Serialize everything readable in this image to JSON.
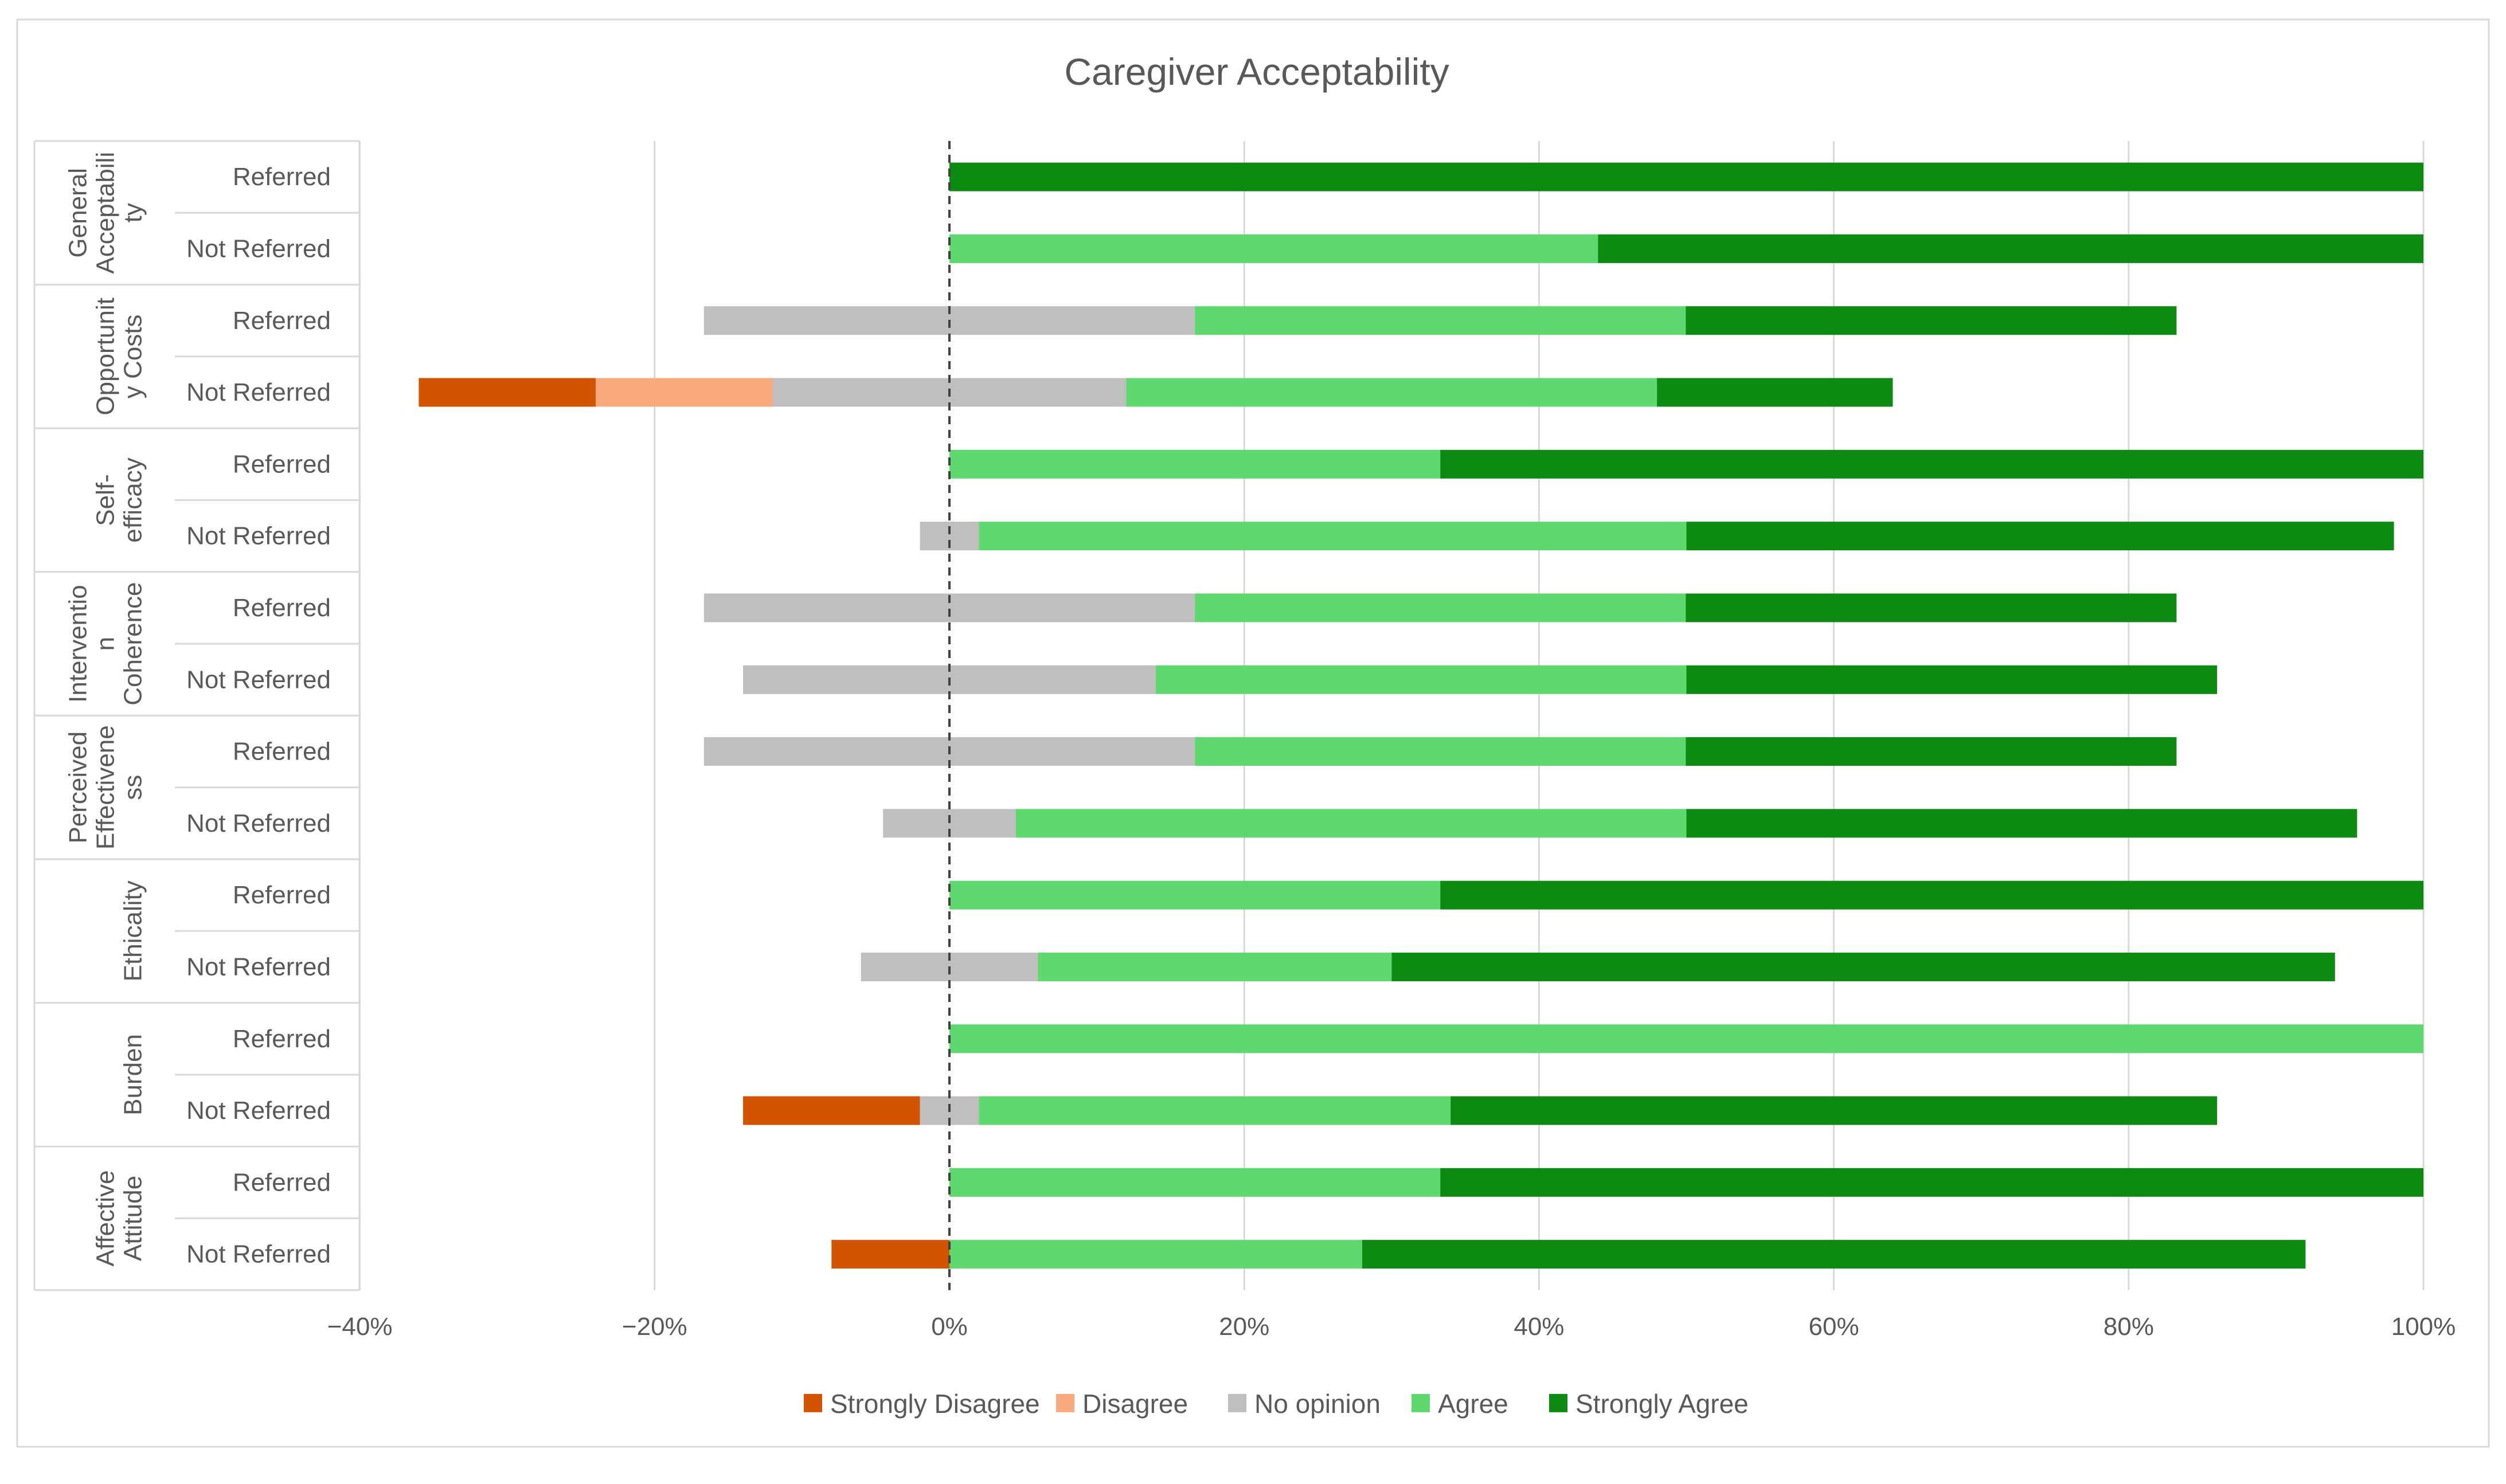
{
  "chart_data": {
    "type": "bar",
    "subtype": "diverging-stacked-horizontal",
    "title": "Caregiver Acceptability",
    "xlabel": "",
    "ylabel": "",
    "xlim": [
      -40,
      100
    ],
    "x_ticks": [
      -40,
      -20,
      0,
      20,
      40,
      60,
      80,
      100
    ],
    "x_tick_labels": [
      "−40%",
      "−20%",
      "0%",
      "20%",
      "40%",
      "60%",
      "80%",
      "100%"
    ],
    "grid": "vertical",
    "zero_line": "dashed",
    "legend_position": "bottom",
    "series": [
      {
        "name": "Strongly Disagree",
        "color": "#D35400",
        "side": "negative"
      },
      {
        "name": "Disagree",
        "color": "#F8A97E",
        "side": "negative"
      },
      {
        "name": "No opinion",
        "color": "#BFBFBF",
        "side": "split"
      },
      {
        "name": "Agree",
        "color": "#5FD86F",
        "side": "positive"
      },
      {
        "name": "Strongly Agree",
        "color": "#0C8A12",
        "side": "positive"
      }
    ],
    "groups": [
      {
        "label": "General Acceptability",
        "lines": [
          "General",
          "Acceptabili",
          "ty"
        ],
        "rows": [
          {
            "label": "Referred",
            "values": [
              0,
              0,
              0,
              0,
              100
            ]
          },
          {
            "label": "Not Referred",
            "values": [
              0,
              0,
              0,
              44,
              56
            ]
          }
        ]
      },
      {
        "label": "Opportunity Costs",
        "lines": [
          "Opportunit",
          "y Costs"
        ],
        "rows": [
          {
            "label": "Referred",
            "values": [
              0,
              0,
              33.3,
              33.3,
              33.3
            ]
          },
          {
            "label": "Not Referred",
            "values": [
              12,
              12,
              24,
              36,
              16
            ]
          }
        ]
      },
      {
        "label": "Self-efficacy",
        "lines": [
          "Self-",
          "efficacy"
        ],
        "rows": [
          {
            "label": "Referred",
            "values": [
              0,
              0,
              0,
              33.3,
              66.7
            ]
          },
          {
            "label": "Not Referred",
            "values": [
              0,
              0,
              4,
              48,
              48
            ]
          }
        ]
      },
      {
        "label": "Intervention Coherence",
        "lines": [
          "Interventio",
          "n",
          "Coherence"
        ],
        "rows": [
          {
            "label": "Referred",
            "values": [
              0,
              0,
              33.3,
              33.3,
              33.3
            ]
          },
          {
            "label": "Not Referred",
            "values": [
              0,
              0,
              28,
              36,
              36
            ]
          }
        ]
      },
      {
        "label": "Perceived Effectiveness",
        "lines": [
          "Perceived",
          "Effectivene",
          "ss"
        ],
        "rows": [
          {
            "label": "Referred",
            "values": [
              0,
              0,
              33.3,
              33.3,
              33.3
            ]
          },
          {
            "label": "Not Referred",
            "values": [
              0,
              0,
              9,
              45.5,
              45.5
            ]
          }
        ]
      },
      {
        "label": "Ethicality",
        "lines": [
          "Ethicality"
        ],
        "rows": [
          {
            "label": "Referred",
            "values": [
              0,
              0,
              0,
              33.3,
              66.7
            ]
          },
          {
            "label": "Not Referred",
            "values": [
              0,
              0,
              12,
              24,
              64
            ]
          }
        ]
      },
      {
        "label": "Burden",
        "lines": [
          "Burden"
        ],
        "rows": [
          {
            "label": "Referred",
            "values": [
              0,
              0,
              0,
              100,
              0
            ]
          },
          {
            "label": "Not Referred",
            "values": [
              12,
              0,
              4,
              32,
              52
            ]
          }
        ]
      },
      {
        "label": "Affective Attitude",
        "lines": [
          "Affective",
          "Attitude"
        ],
        "rows": [
          {
            "label": "Referred",
            "values": [
              0,
              0,
              0,
              33.3,
              66.7
            ]
          },
          {
            "label": "Not Referred",
            "values": [
              8,
              0,
              0,
              28,
              64
            ]
          }
        ]
      }
    ]
  }
}
